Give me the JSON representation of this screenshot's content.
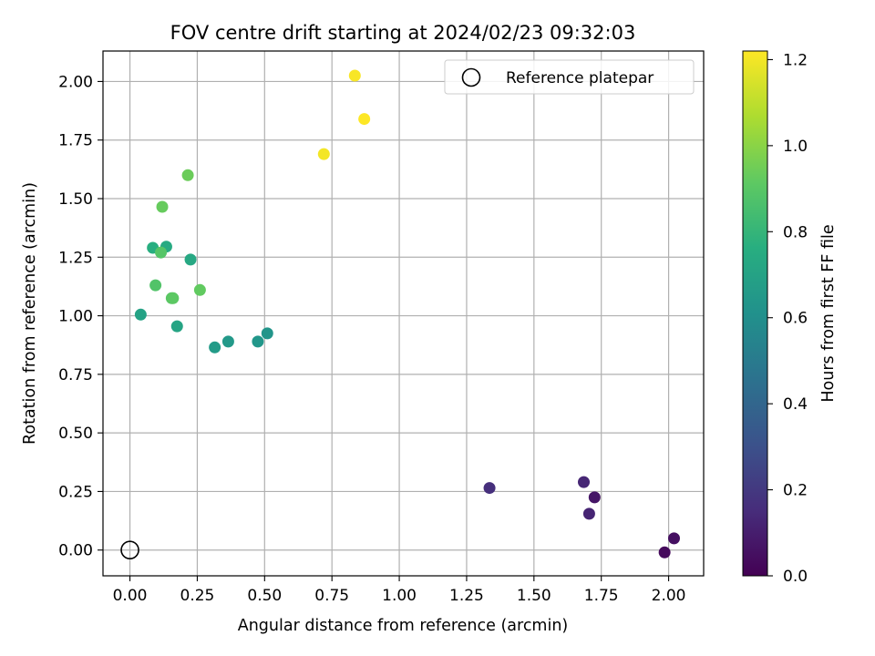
{
  "chart_data": {
    "type": "scatter",
    "title": "FOV centre drift starting at 2024/02/23 09:32:03",
    "xlabel": "Angular distance from reference (arcmin)",
    "ylabel": "Rotation from reference (arcmin)",
    "xlim": [
      -0.1,
      2.13
    ],
    "ylim": [
      -0.11,
      2.13
    ],
    "xticks": [
      "0.00",
      "0.25",
      "0.50",
      "0.75",
      "1.00",
      "1.25",
      "1.50",
      "1.75",
      "2.00"
    ],
    "yticks": [
      "0.00",
      "0.25",
      "0.50",
      "0.75",
      "1.00",
      "1.25",
      "1.50",
      "1.75",
      "2.00"
    ],
    "grid": true,
    "colormap": "viridis",
    "colorbar": {
      "label": "Hours from first FF file",
      "range": [
        0.0,
        1.22
      ],
      "ticks": [
        "0.0",
        "0.2",
        "0.4",
        "0.6",
        "0.8",
        "1.0",
        "1.2"
      ]
    },
    "legend": {
      "position": "top-right",
      "entries": [
        "Reference platepar"
      ]
    },
    "reference_point": {
      "x": 0.0,
      "y": 0.0,
      "label": "Reference platepar"
    },
    "points": [
      {
        "x": 1.985,
        "y": -0.01,
        "hours": 0.03
      },
      {
        "x": 2.02,
        "y": 0.05,
        "hours": 0.05
      },
      {
        "x": 1.725,
        "y": 0.225,
        "hours": 0.07
      },
      {
        "x": 1.705,
        "y": 0.155,
        "hours": 0.12
      },
      {
        "x": 1.685,
        "y": 0.29,
        "hours": 0.13
      },
      {
        "x": 1.335,
        "y": 0.265,
        "hours": 0.16
      },
      {
        "x": 0.51,
        "y": 0.925,
        "hours": 0.63
      },
      {
        "x": 0.475,
        "y": 0.89,
        "hours": 0.64
      },
      {
        "x": 0.365,
        "y": 0.89,
        "hours": 0.65
      },
      {
        "x": 0.315,
        "y": 0.865,
        "hours": 0.66
      },
      {
        "x": 0.04,
        "y": 1.005,
        "hours": 0.7
      },
      {
        "x": 0.175,
        "y": 0.955,
        "hours": 0.71
      },
      {
        "x": 0.225,
        "y": 1.24,
        "hours": 0.73
      },
      {
        "x": 0.135,
        "y": 1.295,
        "hours": 0.74
      },
      {
        "x": 0.085,
        "y": 1.29,
        "hours": 0.76
      },
      {
        "x": 0.095,
        "y": 1.13,
        "hours": 0.88
      },
      {
        "x": 0.115,
        "y": 1.27,
        "hours": 0.89
      },
      {
        "x": 0.155,
        "y": 1.075,
        "hours": 0.9
      },
      {
        "x": 0.16,
        "y": 1.075,
        "hours": 0.91
      },
      {
        "x": 0.26,
        "y": 1.11,
        "hours": 0.92
      },
      {
        "x": 0.12,
        "y": 1.465,
        "hours": 0.93
      },
      {
        "x": 0.215,
        "y": 1.6,
        "hours": 0.94
      },
      {
        "x": 0.72,
        "y": 1.69,
        "hours": 1.2
      },
      {
        "x": 0.835,
        "y": 2.025,
        "hours": 1.21
      },
      {
        "x": 0.87,
        "y": 1.84,
        "hours": 1.22
      }
    ]
  }
}
